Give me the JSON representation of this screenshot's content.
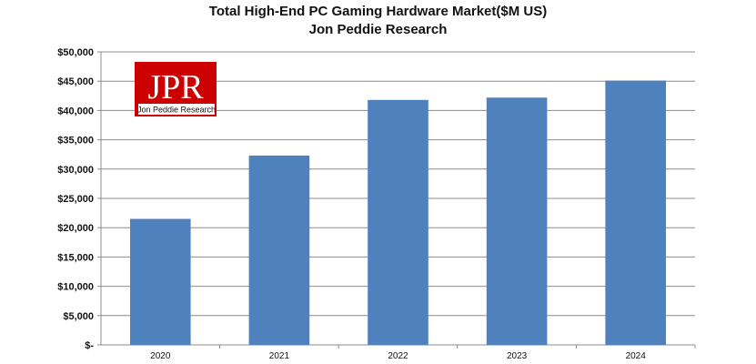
{
  "chart_data": {
    "type": "bar",
    "title": "Total High-End PC Gaming Hardware Market($M US)",
    "subtitle": "Jon Peddie Research",
    "categories": [
      "2020",
      "2021",
      "2022",
      "2023",
      "2024"
    ],
    "values": [
      21500,
      32300,
      41800,
      42200,
      45100
    ],
    "ylim": [
      0,
      50000
    ],
    "yticks": [
      0,
      5000,
      10000,
      15000,
      20000,
      25000,
      30000,
      35000,
      40000,
      45000,
      50000
    ],
    "ytick_labels": [
      "$-",
      "$5,000",
      "$10,000",
      "$15,000",
      "$20,000",
      "$25,000",
      "$30,000",
      "$35,000",
      "$40,000",
      "$45,000",
      "$50,000"
    ],
    "grid": true,
    "bar_color": "#4f81bd"
  },
  "logo": {
    "main_text": "JPR",
    "sub_text": "Jon Peddie Research",
    "background_color": "#cc0000"
  }
}
